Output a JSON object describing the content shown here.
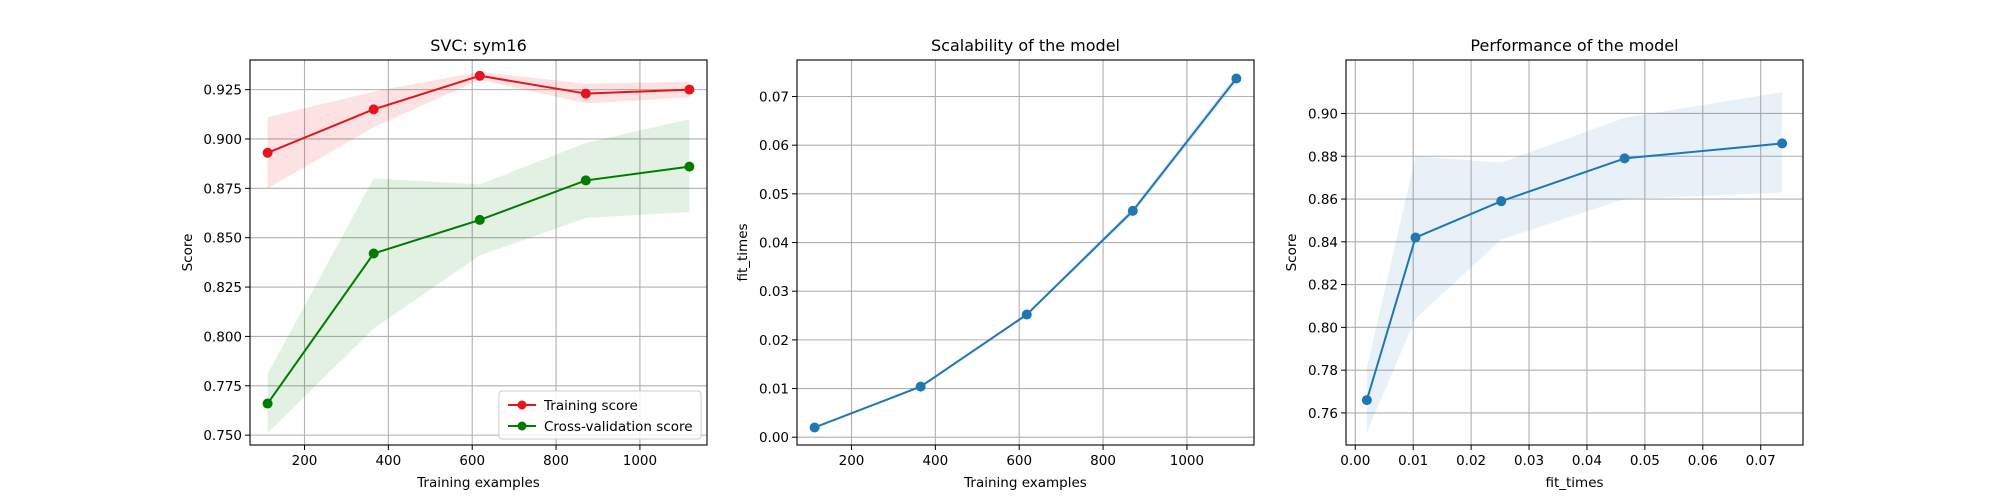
{
  "chart_data": [
    {
      "type": "line",
      "title": "SVC: sym16",
      "xlabel": "Training examples",
      "ylabel": "Score",
      "xlim": [
        70,
        1160
      ],
      "ylim": [
        0.745,
        0.94
      ],
      "xticks": [
        200,
        400,
        600,
        800,
        1000
      ],
      "yticks": [
        0.75,
        0.775,
        0.8,
        0.825,
        0.85,
        0.875,
        0.9,
        0.925
      ],
      "xtick_labels": [
        "200",
        "400",
        "600",
        "800",
        "1000"
      ],
      "ytick_labels": [
        "0.750",
        "0.775",
        "0.800",
        "0.825",
        "0.850",
        "0.875",
        "0.900",
        "0.925"
      ],
      "grid": true,
      "legend": "lower right",
      "series": [
        {
          "name": "Training score",
          "color": "#e8131b",
          "band_color": "#e8131b",
          "band_opacity": 0.12,
          "x": [
            112,
            365,
            618,
            871,
            1118
          ],
          "y": [
            0.893,
            0.915,
            0.932,
            0.923,
            0.925
          ],
          "y_lower": [
            0.875,
            0.906,
            0.93,
            0.918,
            0.921
          ],
          "y_upper": [
            0.911,
            0.924,
            0.934,
            0.928,
            0.929
          ]
        },
        {
          "name": "Cross-validation score",
          "color": "#007d00",
          "band_color": "#007d00",
          "band_opacity": 0.11,
          "x": [
            112,
            365,
            618,
            871,
            1118
          ],
          "y": [
            0.766,
            0.842,
            0.859,
            0.879,
            0.886
          ],
          "y_lower": [
            0.751,
            0.804,
            0.841,
            0.86,
            0.863
          ],
          "y_upper": [
            0.781,
            0.88,
            0.877,
            0.898,
            0.91
          ]
        }
      ]
    },
    {
      "type": "line",
      "title": "Scalability of the model",
      "xlabel": "Training examples",
      "ylabel": "fit_times",
      "xlim": [
        70,
        1160
      ],
      "ylim": [
        -0.0016,
        0.0775
      ],
      "xticks": [
        200,
        400,
        600,
        800,
        1000
      ],
      "yticks": [
        0.0,
        0.01,
        0.02,
        0.03,
        0.04,
        0.05,
        0.06,
        0.07
      ],
      "xtick_labels": [
        "200",
        "400",
        "600",
        "800",
        "1000"
      ],
      "ytick_labels": [
        "0.00",
        "0.01",
        "0.02",
        "0.03",
        "0.04",
        "0.05",
        "0.06",
        "0.07"
      ],
      "grid": true,
      "series": [
        {
          "color": "#1f77b4",
          "band_color": "#1f77b4",
          "band_opacity": 0.12,
          "x": [
            112,
            365,
            618,
            871,
            1118
          ],
          "y": [
            0.002,
            0.0104,
            0.0252,
            0.0465,
            0.0737
          ],
          "y_lower": [
            0.0019,
            0.0101,
            0.0249,
            0.0458,
            0.0728
          ],
          "y_upper": [
            0.0021,
            0.0107,
            0.0255,
            0.0472,
            0.0746
          ]
        }
      ]
    },
    {
      "type": "line",
      "title": "Performance of the model",
      "xlabel": "fit_times",
      "ylabel": "Score",
      "xlim": [
        -0.0016,
        0.0773
      ],
      "ylim": [
        0.745,
        0.925
      ],
      "xticks": [
        0.0,
        0.01,
        0.02,
        0.03,
        0.04,
        0.05,
        0.06,
        0.07
      ],
      "yticks": [
        0.76,
        0.78,
        0.8,
        0.82,
        0.84,
        0.86,
        0.88,
        0.9
      ],
      "xtick_labels": [
        "0.00",
        "0.01",
        "0.02",
        "0.03",
        "0.04",
        "0.05",
        "0.06",
        "0.07"
      ],
      "ytick_labels": [
        "0.76",
        "0.78",
        "0.80",
        "0.82",
        "0.84",
        "0.86",
        "0.88",
        "0.90"
      ],
      "grid": true,
      "series": [
        {
          "color": "#1f77b4",
          "band_color": "#1f77b4",
          "band_opacity": 0.1,
          "x": [
            0.002,
            0.0104,
            0.0252,
            0.0465,
            0.0737
          ],
          "y": [
            0.766,
            0.842,
            0.859,
            0.879,
            0.886
          ],
          "y_lower": [
            0.751,
            0.804,
            0.841,
            0.86,
            0.863
          ],
          "y_upper": [
            0.781,
            0.88,
            0.877,
            0.898,
            0.91
          ]
        }
      ]
    }
  ]
}
